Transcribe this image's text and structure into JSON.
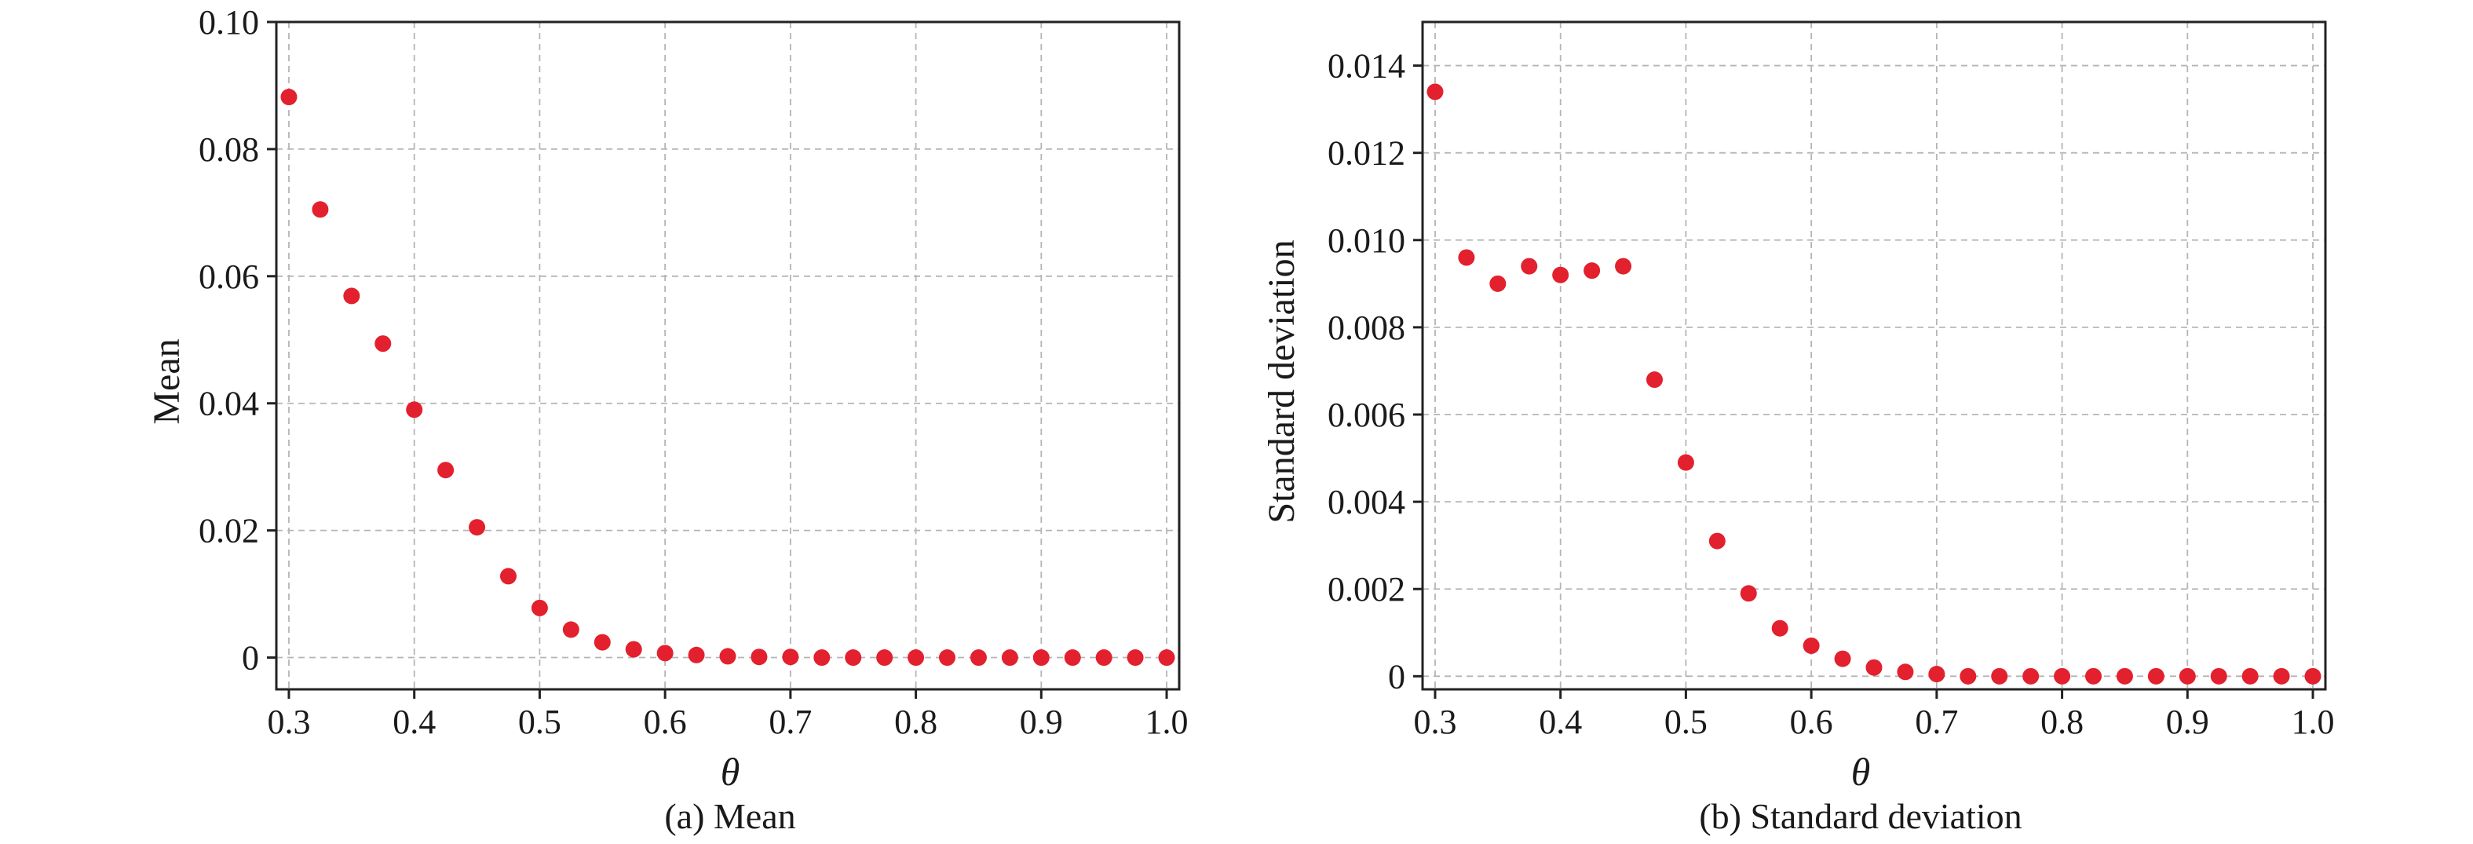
{
  "chart_data": [
    {
      "type": "scatter",
      "xlabel": "θ",
      "ylabel": "Mean",
      "caption": "(a) Mean",
      "xlim": [
        0.29,
        1.01
      ],
      "ylim": [
        -0.005,
        0.1
      ],
      "grid": true,
      "color": "#e3202e",
      "x_ticks": [
        0.3,
        0.4,
        0.5,
        0.6,
        0.7,
        0.8,
        0.9,
        1.0
      ],
      "x_tick_labels": [
        "0.3",
        "0.4",
        "0.5",
        "0.6",
        "0.7",
        "0.8",
        "0.9",
        "1.0"
      ],
      "y_ticks": [
        0,
        0.02,
        0.04,
        0.06,
        0.08,
        0.1
      ],
      "y_tick_labels": [
        "0",
        "0.02",
        "0.04",
        "0.06",
        "0.08",
        "0.10"
      ],
      "x": [
        0.3,
        0.325,
        0.35,
        0.375,
        0.4,
        0.425,
        0.45,
        0.475,
        0.5,
        0.525,
        0.55,
        0.575,
        0.6,
        0.625,
        0.65,
        0.675,
        0.7,
        0.725,
        0.75,
        0.775,
        0.8,
        0.825,
        0.85,
        0.875,
        0.9,
        0.925,
        0.95,
        0.975,
        1.0
      ],
      "y": [
        0.0882,
        0.0705,
        0.0569,
        0.0494,
        0.039,
        0.0295,
        0.0205,
        0.0128,
        0.0078,
        0.0044,
        0.0024,
        0.0013,
        0.0007,
        0.0004,
        0.0002,
        0.0001,
        0.0001,
        0.0,
        0.0,
        0.0,
        0.0,
        0.0,
        0.0,
        0.0,
        0.0,
        0.0,
        0.0,
        0.0,
        0.0
      ]
    },
    {
      "type": "scatter",
      "xlabel": "θ",
      "ylabel": "Standard deviation",
      "caption": "(b) Standard deviation",
      "xlim": [
        0.29,
        1.01
      ],
      "ylim": [
        -0.0003,
        0.015
      ],
      "grid": true,
      "color": "#e3202e",
      "x_ticks": [
        0.3,
        0.4,
        0.5,
        0.6,
        0.7,
        0.8,
        0.9,
        1.0
      ],
      "x_tick_labels": [
        "0.3",
        "0.4",
        "0.5",
        "0.6",
        "0.7",
        "0.8",
        "0.9",
        "1.0"
      ],
      "y_ticks": [
        0,
        0.002,
        0.004,
        0.006,
        0.008,
        0.01,
        0.012,
        0.014
      ],
      "y_tick_labels": [
        "0",
        "0.002",
        "0.004",
        "0.006",
        "0.008",
        "0.010",
        "0.012",
        "0.014"
      ],
      "x": [
        0.3,
        0.325,
        0.35,
        0.375,
        0.4,
        0.425,
        0.45,
        0.475,
        0.5,
        0.525,
        0.55,
        0.575,
        0.6,
        0.625,
        0.65,
        0.675,
        0.7,
        0.725,
        0.75,
        0.775,
        0.8,
        0.825,
        0.85,
        0.875,
        0.9,
        0.925,
        0.95,
        0.975,
        1.0
      ],
      "y": [
        0.0134,
        0.0096,
        0.009,
        0.0094,
        0.0092,
        0.0093,
        0.0094,
        0.0068,
        0.0049,
        0.0031,
        0.0019,
        0.0011,
        0.0007,
        0.0004,
        0.0002,
        0.0001,
        5e-05,
        0.0,
        0.0,
        0.0,
        0.0,
        0.0,
        0.0,
        0.0,
        0.0,
        0.0,
        0.0,
        0.0,
        0.0
      ]
    }
  ]
}
